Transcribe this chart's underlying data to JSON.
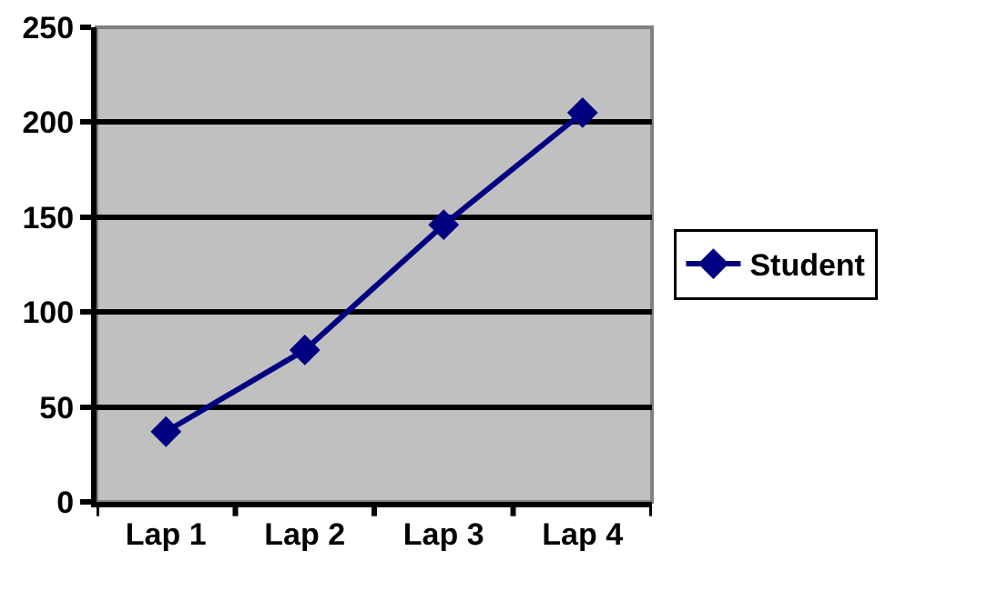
{
  "chart_data": {
    "type": "line",
    "categories": [
      "Lap 1",
      "Lap 2",
      "Lap 3",
      "Lap 4"
    ],
    "series": [
      {
        "name": "Student",
        "color": "#000080",
        "values": [
          37,
          80,
          146,
          205
        ]
      }
    ],
    "ylim": [
      0,
      250
    ],
    "yticks": [
      0,
      50,
      100,
      150,
      200,
      250
    ],
    "grid": "y",
    "legend": "right",
    "marker": "diamond",
    "line_style": "solid"
  }
}
